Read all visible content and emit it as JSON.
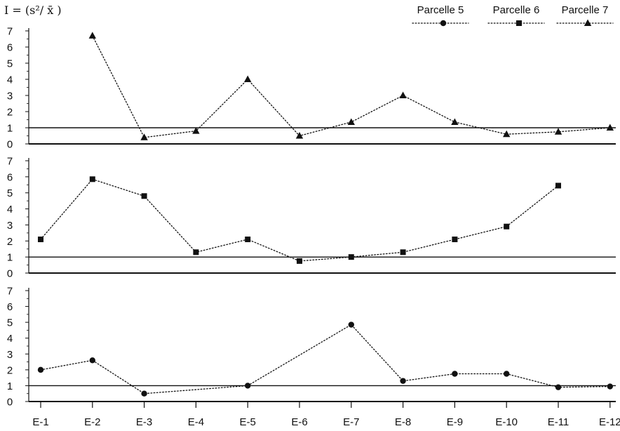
{
  "formula_label": "I = (s²/ x̄ )",
  "chart_data": [
    {
      "type": "line",
      "panel": "top",
      "categories": [
        "E-1",
        "E-2",
        "E-3",
        "E-4",
        "E-5",
        "E-6",
        "E-7",
        "E-8",
        "E-9",
        "E-10",
        "E-11",
        "E-12"
      ],
      "series": [
        {
          "name": "Parcelle 7",
          "marker": "triangle",
          "values": [
            null,
            6.7,
            0.4,
            0.8,
            4.0,
            0.5,
            1.35,
            3.0,
            1.35,
            0.6,
            0.75,
            1.0
          ]
        }
      ],
      "ylim": [
        0,
        7
      ],
      "yticks": [
        "0",
        "1",
        "2",
        "3",
        "4",
        "5",
        "6",
        "7"
      ],
      "reference_line": 1,
      "grid": false
    },
    {
      "type": "line",
      "panel": "middle",
      "categories": [
        "E-1",
        "E-2",
        "E-3",
        "E-4",
        "E-5",
        "E-6",
        "E-7",
        "E-8",
        "E-9",
        "E-10",
        "E-11",
        "E-12"
      ],
      "series": [
        {
          "name": "Parcelle 6",
          "marker": "square",
          "values": [
            2.1,
            5.85,
            4.8,
            1.3,
            2.1,
            0.75,
            1.0,
            1.3,
            2.1,
            2.9,
            5.45,
            null
          ]
        }
      ],
      "ylim": [
        0,
        7
      ],
      "yticks": [
        "0",
        "1",
        "2",
        "3",
        "4",
        "5",
        "6",
        "7"
      ],
      "reference_line": 1,
      "grid": false
    },
    {
      "type": "line",
      "panel": "bottom",
      "categories": [
        "E-1",
        "E-2",
        "E-3",
        "E-4",
        "E-5",
        "E-6",
        "E-7",
        "E-8",
        "E-9",
        "E-10",
        "E-11",
        "E-12"
      ],
      "series": [
        {
          "name": "Parcelle 5",
          "marker": "circle",
          "values": [
            2.0,
            2.6,
            0.5,
            null,
            1.0,
            null,
            4.85,
            1.3,
            1.75,
            1.75,
            0.9,
            0.95
          ]
        }
      ],
      "ylim": [
        0,
        7
      ],
      "yticks": [
        "0",
        "1",
        "2",
        "3",
        "4",
        "5",
        "6",
        "7"
      ],
      "reference_line": 1,
      "grid": false
    }
  ],
  "legend": {
    "placement": "top-right",
    "items": [
      {
        "label": "Parcelle 5",
        "marker": "circle"
      },
      {
        "label": "Parcelle 6",
        "marker": "square"
      },
      {
        "label": "Parcelle 7",
        "marker": "triangle"
      }
    ]
  },
  "colors": {
    "ink": "#111111",
    "background": "#ffffff"
  }
}
